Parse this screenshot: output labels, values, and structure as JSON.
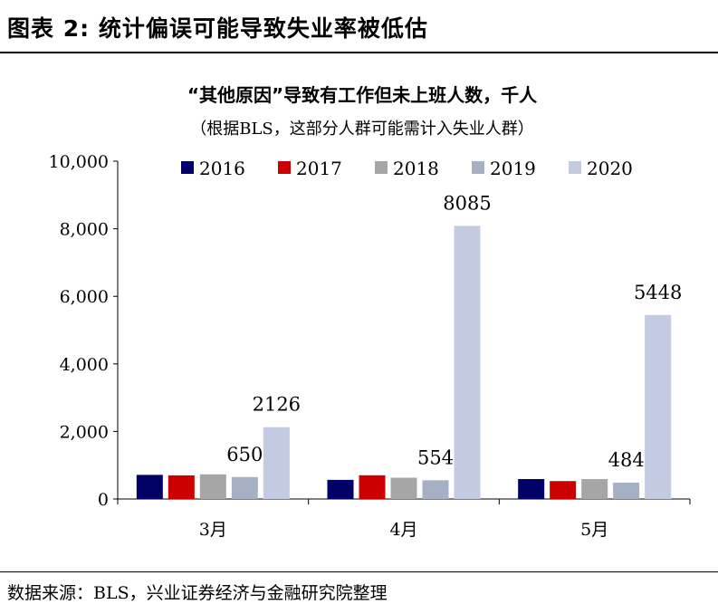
{
  "figure": {
    "label": "图表 2:",
    "title": "统计偏误可能导致失业率被低估"
  },
  "source": "数据来源：BLS，兴业证券经济与金融研究院整理",
  "chart_data": {
    "type": "bar",
    "title": "“其他原因”导致有工作但未上班人数，千人",
    "subtitle": "（根据BLS，这部分人群可能需计入失业人群）",
    "xlabel": "",
    "ylabel": "",
    "categories": [
      "3月",
      "4月",
      "5月"
    ],
    "ylim": [
      0,
      10000
    ],
    "yticks": [
      0,
      2000,
      4000,
      6000,
      8000,
      10000
    ],
    "ytick_labels": [
      "0",
      "2,000",
      "4,000",
      "6,000",
      "8,000",
      "10,000"
    ],
    "grid": false,
    "legend_position": "top",
    "series": [
      {
        "name": "2016",
        "color": "#000066",
        "values": [
          714,
          566,
          590
        ]
      },
      {
        "name": "2017",
        "color": "#cc0000",
        "values": [
          700,
          702,
          530
        ]
      },
      {
        "name": "2018",
        "color": "#a6a6a6",
        "values": [
          730,
          630,
          590
        ]
      },
      {
        "name": "2019",
        "color": "#a5b0c4",
        "values": [
          650,
          554,
          484
        ]
      },
      {
        "name": "2020",
        "color": "#c2cbe2",
        "values": [
          2126,
          8085,
          5448
        ]
      }
    ],
    "data_labels": [
      {
        "series": "2019",
        "category": "3月",
        "text": "650"
      },
      {
        "series": "2020",
        "category": "3月",
        "text": "2126"
      },
      {
        "series": "2019",
        "category": "4月",
        "text": "554"
      },
      {
        "series": "2020",
        "category": "4月",
        "text": "8085"
      },
      {
        "series": "2019",
        "category": "5月",
        "text": "484"
      },
      {
        "series": "2020",
        "category": "5月",
        "text": "5448"
      }
    ]
  }
}
